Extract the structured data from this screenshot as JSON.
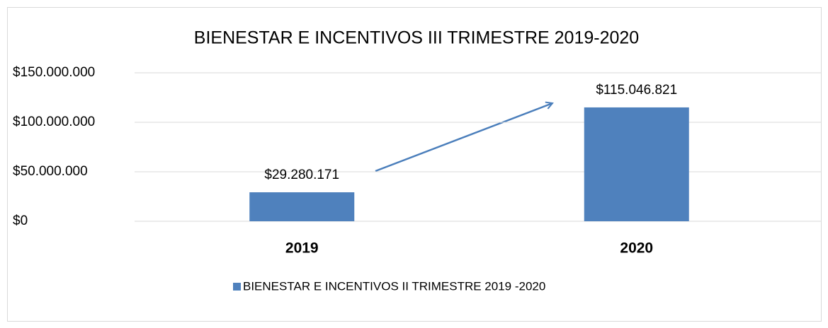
{
  "chart_data": {
    "type": "bar",
    "title": "BIENESTAR E INCENTIVOS III TRIMESTRE 2019-2020",
    "categories": [
      "2019",
      "2020"
    ],
    "series": [
      {
        "name": "BIENESTAR E INCENTIVOS II TRIMESTRE 2019 -2020",
        "color": "#4f81bd",
        "values": [
          29280171,
          115046821
        ],
        "value_labels": [
          "$29.280.171",
          "$115.046.821"
        ]
      }
    ],
    "ylim": [
      0,
      150000000
    ],
    "yticks": [
      {
        "value": 0,
        "label": "$0"
      },
      {
        "value": 50000000,
        "label": "$50.000.000"
      },
      {
        "value": 100000000,
        "label": "$100.000.000"
      },
      {
        "value": 150000000,
        "label": "$150.000.000"
      }
    ],
    "grid": true,
    "legend": "bottom"
  }
}
